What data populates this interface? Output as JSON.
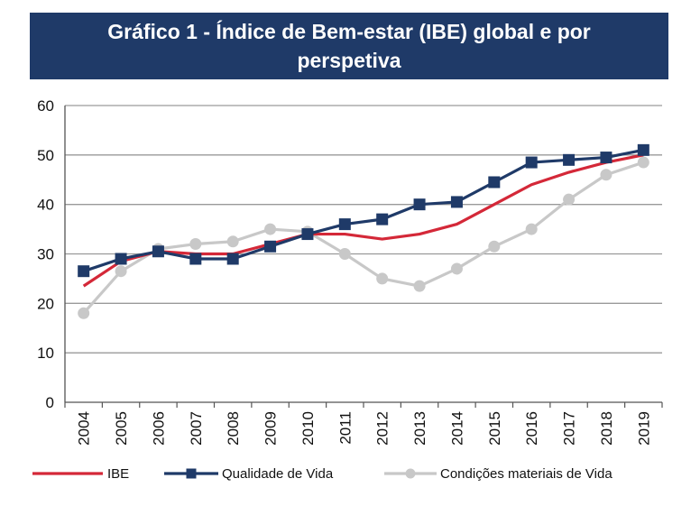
{
  "colors": {
    "title_bg": "#1f3a68",
    "title_text": "#ffffff",
    "ibe": "#d42838",
    "qualidade": "#1f3a68",
    "condicoes": "#c8c8c8",
    "grid": "#9a9a9a"
  },
  "chart_data": {
    "type": "line",
    "title": "Gráfico 1 - Índice de Bem-estar (IBE) global e por perspetiva",
    "xlabel": "",
    "ylabel": "",
    "ylim": [
      0,
      60
    ],
    "yticks": [
      0,
      10,
      20,
      30,
      40,
      50,
      60
    ],
    "grid": true,
    "legend_position": "bottom",
    "categories": [
      "2004",
      "2005",
      "2006",
      "2007",
      "2008",
      "2009",
      "2010",
      "2011",
      "2012",
      "2013",
      "2014",
      "2015",
      "2016",
      "2017",
      "2018",
      "2019"
    ],
    "series": [
      {
        "name": "IBE",
        "marker": "none",
        "values": [
          23.5,
          28.5,
          30.5,
          30.0,
          30.0,
          32.0,
          34.0,
          34.0,
          33.0,
          34.0,
          36.0,
          40.0,
          44.0,
          46.5,
          48.5,
          50.0
        ]
      },
      {
        "name": "Qualidade de Vida",
        "marker": "square",
        "values": [
          26.5,
          29.0,
          30.5,
          29.0,
          29.0,
          31.5,
          34.0,
          36.0,
          37.0,
          40.0,
          40.5,
          44.5,
          48.5,
          49.0,
          49.5,
          51.0
        ]
      },
      {
        "name": "Condições materiais de Vida",
        "marker": "circle",
        "values": [
          18.0,
          26.5,
          31.0,
          32.0,
          32.5,
          35.0,
          34.5,
          30.0,
          25.0,
          23.5,
          27.0,
          31.5,
          35.0,
          41.0,
          46.0,
          48.5
        ]
      }
    ]
  }
}
